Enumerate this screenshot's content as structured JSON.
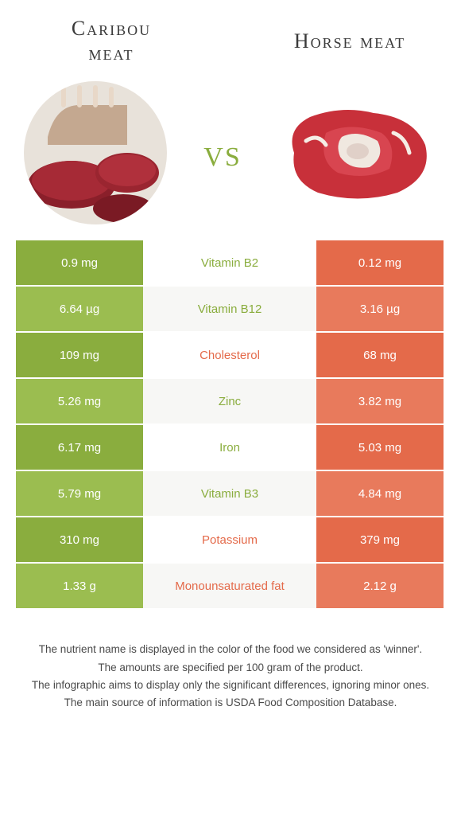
{
  "colors": {
    "left": "#8aad3e",
    "right": "#e46a4a",
    "left_alt": "#9bbd50",
    "right_alt": "#e87a5c",
    "row_bg_even": "#ffffff",
    "row_bg_odd": "#f7f7f5"
  },
  "left_title_line1": "Caribou",
  "left_title_line2": "meat",
  "right_title": "Horse meat",
  "vs_label": "vs",
  "rows": [
    {
      "nutrient": "Vitamin B2",
      "left": "0.9 mg",
      "right": "0.12 mg",
      "winner": "left"
    },
    {
      "nutrient": "Vitamin B12",
      "left": "6.64 µg",
      "right": "3.16 µg",
      "winner": "left"
    },
    {
      "nutrient": "Cholesterol",
      "left": "109 mg",
      "right": "68 mg",
      "winner": "right"
    },
    {
      "nutrient": "Zinc",
      "left": "5.26 mg",
      "right": "3.82 mg",
      "winner": "left"
    },
    {
      "nutrient": "Iron",
      "left": "6.17 mg",
      "right": "5.03 mg",
      "winner": "left"
    },
    {
      "nutrient": "Vitamin B3",
      "left": "5.79 mg",
      "right": "4.84 mg",
      "winner": "left"
    },
    {
      "nutrient": "Potassium",
      "left": "310 mg",
      "right": "379 mg",
      "winner": "right"
    },
    {
      "nutrient": "Monounsaturated fat",
      "left": "1.33 g",
      "right": "2.12 g",
      "winner": "right"
    }
  ],
  "footer": [
    "The nutrient name is displayed in the color of the food we considered as 'winner'.",
    "The amounts are specified per 100 gram of the product.",
    "The infographic aims to display only the significant differences, ignoring minor ones.",
    "The main source of information is USDA Food Composition Database."
  ]
}
